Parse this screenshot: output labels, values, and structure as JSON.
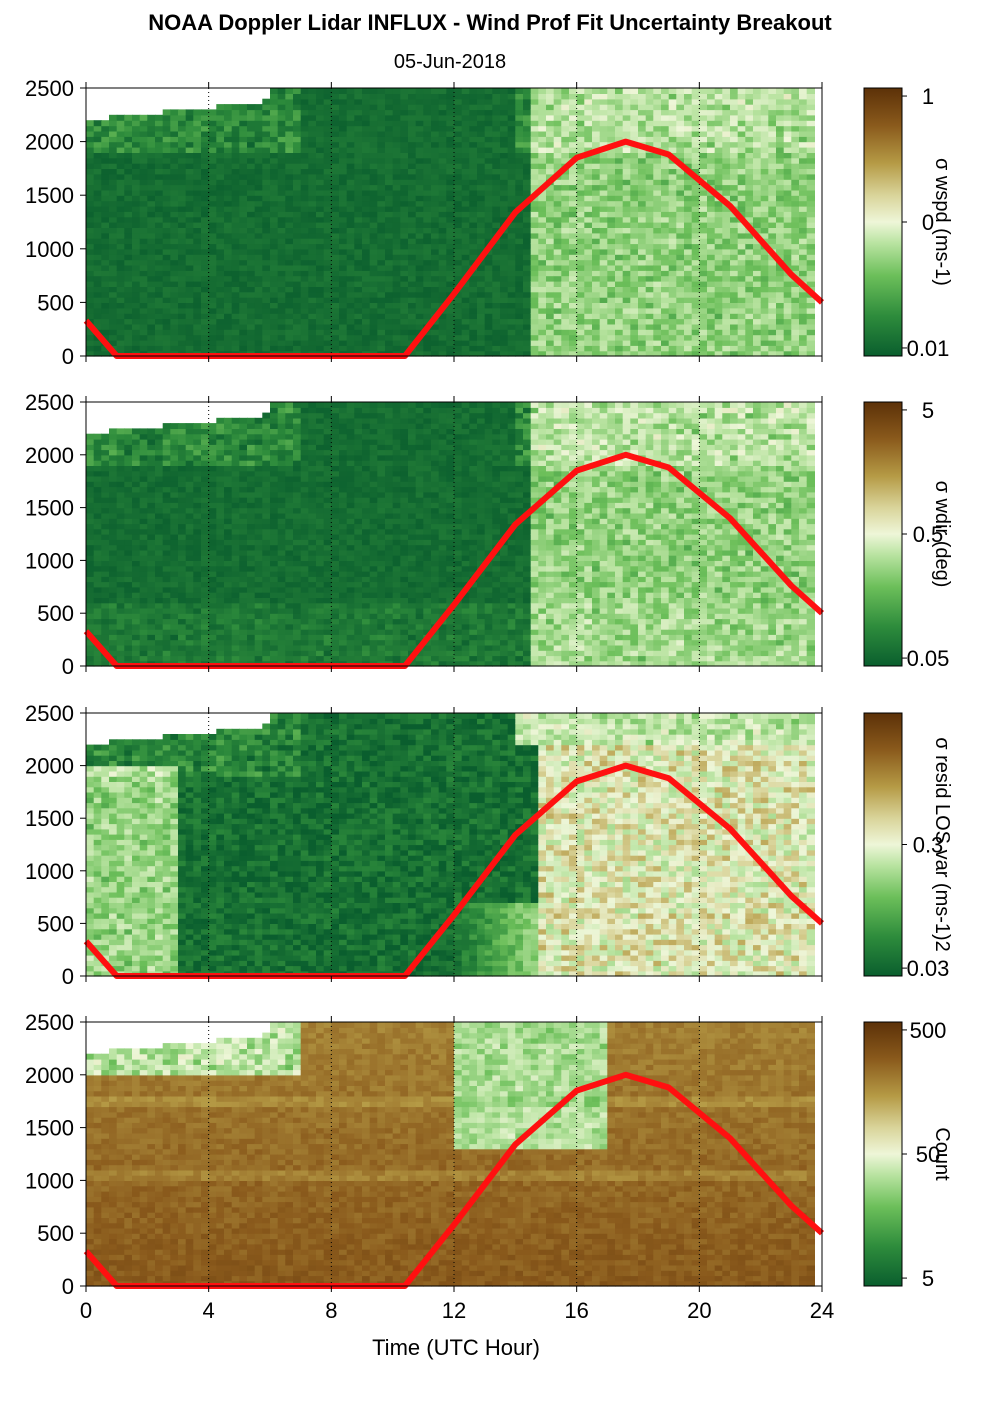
{
  "figure": {
    "title": "NOAA Doppler Lidar INFLUX - Wind Prof Fit Uncertainty Breakout",
    "subtitle": "05-Jun-2018",
    "xlabel": "Time (UTC Hour)",
    "xticks": [
      "0",
      "4",
      "8",
      "12",
      "16",
      "20",
      "24"
    ],
    "yticks": [
      "0",
      "500",
      "1000",
      "1500",
      "2000",
      "2500"
    ]
  },
  "colors": {
    "overlay_line": "#ff1010",
    "colormap": [
      "#0a5e2e",
      "#2e8c3c",
      "#6cbf5a",
      "#b8e3a0",
      "#eef6d8",
      "#d9d49a",
      "#b59a45",
      "#8a5a1c",
      "#5c3108"
    ]
  },
  "chart_data": [
    {
      "type": "heatmap",
      "panel": "wspd",
      "x_range": [
        0,
        24
      ],
      "ylim": [
        0,
        2500
      ],
      "colorbar": {
        "label": "σ wspd (ms-1)",
        "ticks": [
          "1",
          "0",
          "0.01"
        ],
        "scale": "log"
      },
      "overlay_line": {
        "description": "solar elevation curve",
        "points": [
          [
            0,
            330
          ],
          [
            1,
            0
          ],
          [
            10.4,
            0
          ],
          [
            12,
            580
          ],
          [
            14,
            1340
          ],
          [
            16,
            1850
          ],
          [
            17.6,
            2000
          ],
          [
            19,
            1880
          ],
          [
            21,
            1400
          ],
          [
            23,
            760
          ],
          [
            24,
            500
          ]
        ]
      }
    },
    {
      "type": "heatmap",
      "panel": "wdir",
      "x_range": [
        0,
        24
      ],
      "ylim": [
        0,
        2500
      ],
      "colorbar": {
        "label": "σ wdir (deg)",
        "ticks": [
          "5",
          "0.5",
          "0.05"
        ],
        "scale": "log"
      },
      "overlay_line": {
        "description": "solar elevation curve",
        "points": [
          [
            0,
            330
          ],
          [
            1,
            0
          ],
          [
            10.4,
            0
          ],
          [
            12,
            580
          ],
          [
            14,
            1340
          ],
          [
            16,
            1850
          ],
          [
            17.6,
            2000
          ],
          [
            19,
            1880
          ],
          [
            21,
            1400
          ],
          [
            23,
            760
          ],
          [
            24,
            500
          ]
        ]
      }
    },
    {
      "type": "heatmap",
      "panel": "resid",
      "x_range": [
        0,
        24
      ],
      "ylim": [
        0,
        2500
      ],
      "colorbar": {
        "label": "σ resid LOS var (ms-1)2",
        "ticks": [
          "0.3",
          "0.03"
        ],
        "scale": "log"
      },
      "overlay_line": {
        "description": "solar elevation curve",
        "points": [
          [
            0,
            330
          ],
          [
            1,
            0
          ],
          [
            10.4,
            0
          ],
          [
            12,
            580
          ],
          [
            14,
            1340
          ],
          [
            16,
            1850
          ],
          [
            17.6,
            2000
          ],
          [
            19,
            1880
          ],
          [
            21,
            1400
          ],
          [
            23,
            760
          ],
          [
            24,
            500
          ]
        ]
      }
    },
    {
      "type": "heatmap",
      "panel": "count",
      "x_range": [
        0,
        24
      ],
      "ylim": [
        0,
        2500
      ],
      "colorbar": {
        "label": "Count",
        "ticks": [
          "500",
          "50",
          "5"
        ],
        "scale": "log"
      },
      "overlay_line": {
        "description": "solar elevation curve",
        "points": [
          [
            0,
            330
          ],
          [
            1,
            0
          ],
          [
            10.4,
            0
          ],
          [
            12,
            580
          ],
          [
            14,
            1340
          ],
          [
            16,
            1850
          ],
          [
            17.6,
            2000
          ],
          [
            19,
            1880
          ],
          [
            21,
            1400
          ],
          [
            23,
            760
          ],
          [
            24,
            500
          ]
        ]
      }
    }
  ]
}
